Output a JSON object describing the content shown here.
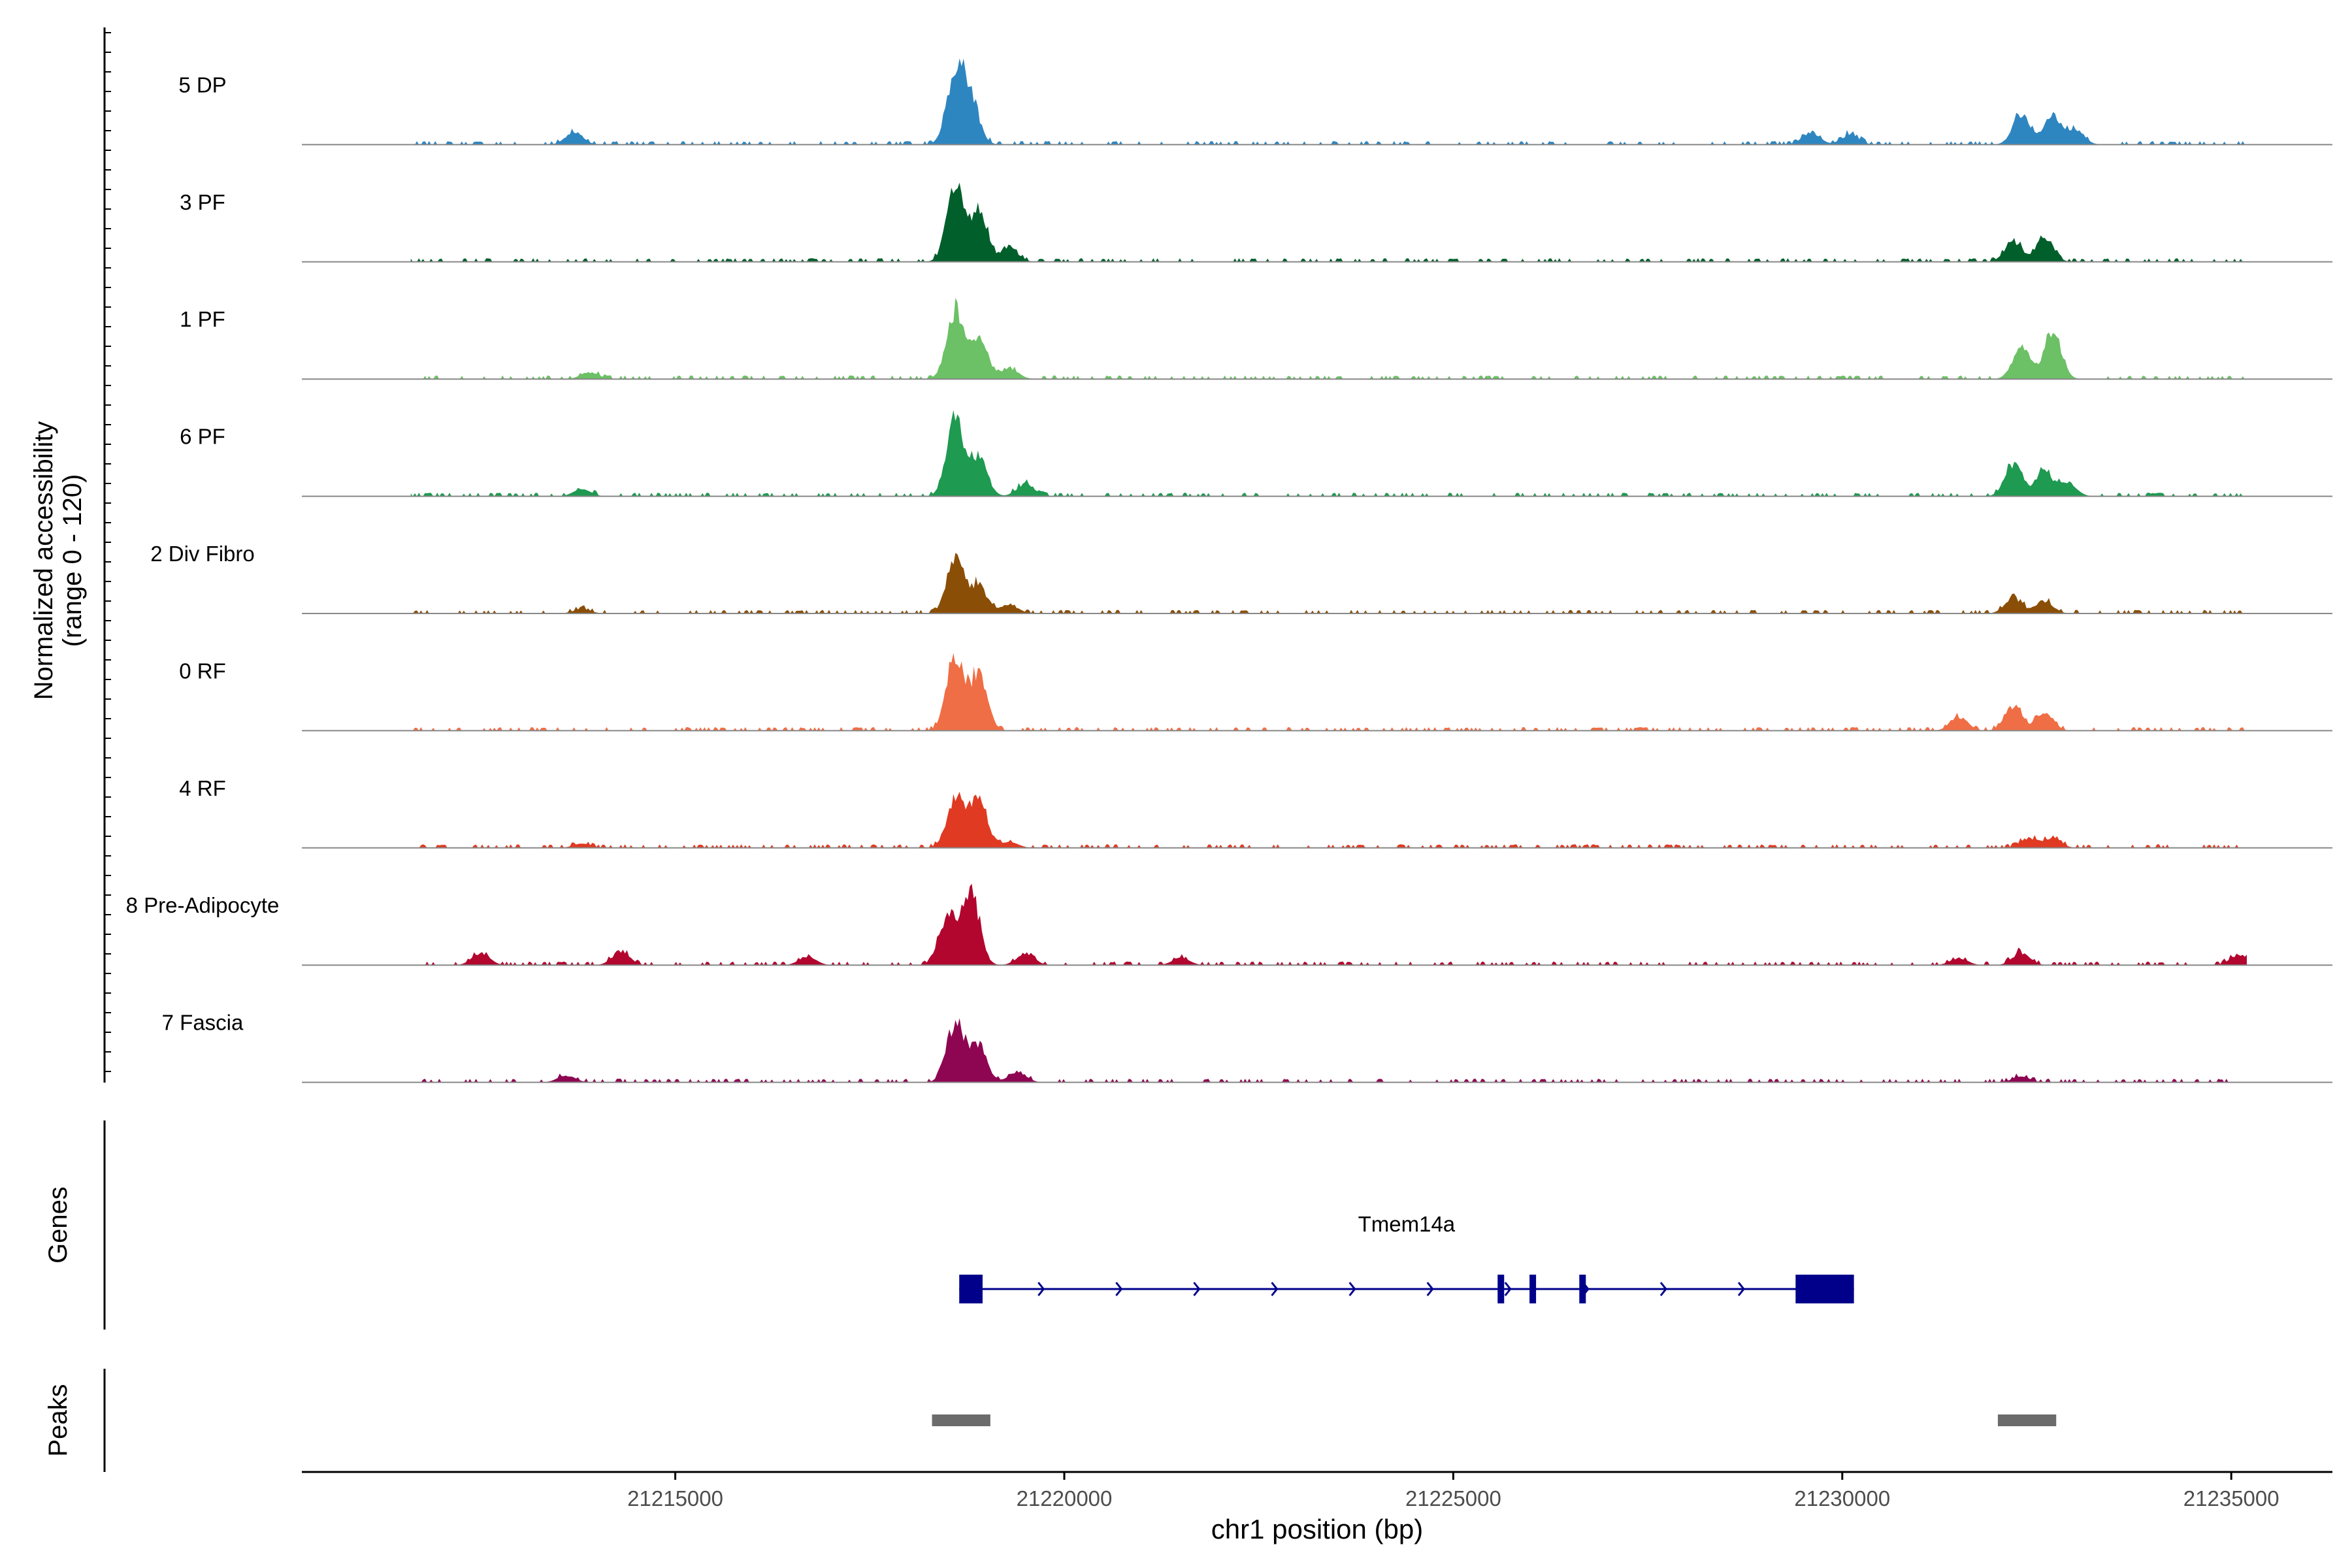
{
  "chart_data": {
    "type": "area",
    "title": "",
    "xlabel": "chr1 position (bp)",
    "ylabel": "Normalized accessibility",
    "ylabel_sub": "(range 0 - 120)",
    "ylim": [
      0,
      120
    ],
    "xlim": [
      21210200,
      21236300
    ],
    "x_ticks": [
      21215000,
      21220000,
      21225000,
      21230000,
      21235000
    ],
    "x_tick_labels": [
      "21215000",
      "21220000",
      "21225000",
      "21230000",
      "21235000"
    ],
    "tracks": [
      {
        "name": "5 DP",
        "color": "#2E86C1",
        "peaks": [
          [
            21213700,
            18
          ],
          [
            21218600,
            100
          ],
          [
            21218800,
            60
          ],
          [
            21229600,
            18
          ],
          [
            21230100,
            15
          ],
          [
            21232300,
            42
          ],
          [
            21232700,
            40
          ],
          [
            21233000,
            20
          ]
        ]
      },
      {
        "name": "3 PF",
        "color": "#005F2B",
        "peaks": [
          [
            21218600,
            106
          ],
          [
            21218900,
            72
          ],
          [
            21219300,
            18
          ],
          [
            21232200,
            30
          ],
          [
            21232600,
            35
          ]
        ]
      },
      {
        "name": "1 PF",
        "color": "#6CC065",
        "peaks": [
          [
            21213900,
            10
          ],
          [
            21218600,
            98
          ],
          [
            21218900,
            60
          ],
          [
            21219300,
            15
          ],
          [
            21232300,
            46
          ],
          [
            21232700,
            68
          ]
        ]
      },
      {
        "name": "6 PF",
        "color": "#1E9A51",
        "peaks": [
          [
            21213800,
            10
          ],
          [
            21218600,
            110
          ],
          [
            21218900,
            55
          ],
          [
            21219500,
            18
          ],
          [
            21232200,
            45
          ],
          [
            21232600,
            35
          ],
          [
            21232900,
            18
          ]
        ]
      },
      {
        "name": "2 Div Fibro",
        "color": "#8B4E06",
        "peaks": [
          [
            21213800,
            6
          ],
          [
            21218600,
            80
          ],
          [
            21218900,
            40
          ],
          [
            21219300,
            12
          ],
          [
            21232200,
            22
          ],
          [
            21232600,
            18
          ]
        ]
      },
      {
        "name": "0 RF",
        "color": "#F06E45",
        "peaks": [
          [
            21218600,
            110
          ],
          [
            21218900,
            78
          ],
          [
            21231500,
            20
          ],
          [
            21232200,
            36
          ],
          [
            21232600,
            26
          ]
        ]
      },
      {
        "name": "4 RF",
        "color": "#E03A23",
        "peaks": [
          [
            21213800,
            6
          ],
          [
            21218600,
            70
          ],
          [
            21218900,
            74
          ],
          [
            21219300,
            8
          ],
          [
            21232400,
            14
          ],
          [
            21232700,
            14
          ]
        ]
      },
      {
        "name": "8 Pre-Adipocyte",
        "color": "#B2062F",
        "peaks": [
          [
            21212500,
            18
          ],
          [
            21214300,
            20
          ],
          [
            21216700,
            12
          ],
          [
            21218500,
            70
          ],
          [
            21218800,
            105
          ],
          [
            21219500,
            18
          ],
          [
            21221500,
            10
          ],
          [
            21231500,
            10
          ],
          [
            21232300,
            18
          ],
          [
            21235100,
            15
          ]
        ]
      },
      {
        "name": "7 Fascia",
        "color": "#8E0552",
        "peaks": [
          [
            21213600,
            10
          ],
          [
            21218600,
            85
          ],
          [
            21218900,
            50
          ],
          [
            21219400,
            15
          ],
          [
            21232300,
            8
          ]
        ]
      }
    ],
    "genes": {
      "label": "Genes",
      "name": "Tmem14a",
      "start": 21218650,
      "end": 21230150,
      "strand": "+",
      "exons": [
        [
          21218650,
          21218950
        ],
        [
          21225570,
          21225650
        ],
        [
          21225980,
          21226060
        ],
        [
          21226620,
          21226700
        ],
        [
          21229400,
          21230150
        ]
      ],
      "color": "#00008B"
    },
    "peaks_track": {
      "label": "Peaks",
      "regions": [
        [
          21218300,
          21219050
        ],
        [
          21232000,
          21232750
        ]
      ],
      "color": "#6B6B6B"
    },
    "grid": false,
    "legend": "none"
  }
}
